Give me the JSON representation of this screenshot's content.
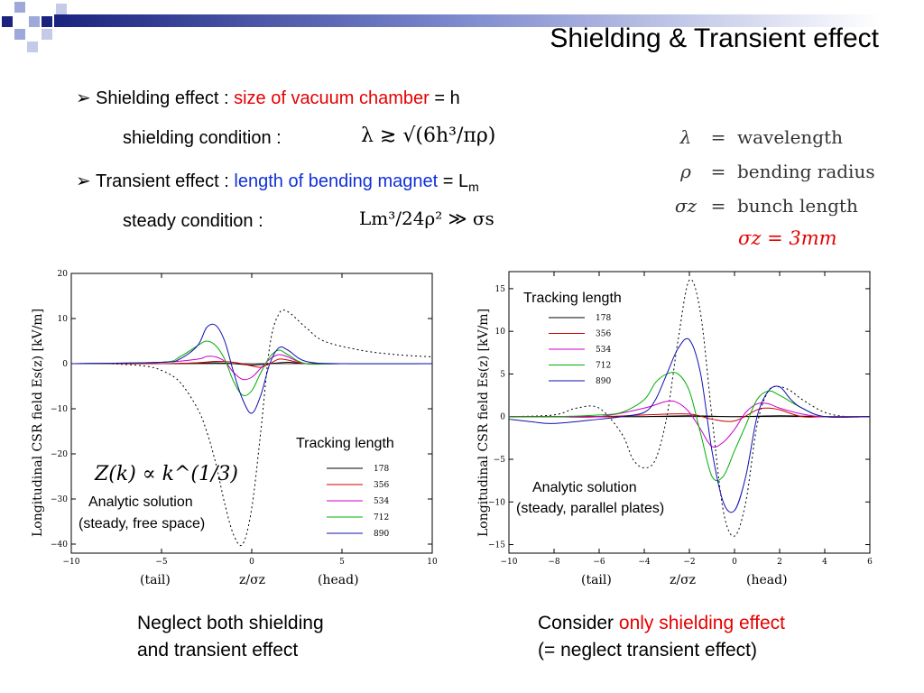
{
  "slide": {
    "title": "Shielding & Transient effect"
  },
  "bullets": {
    "b1": {
      "prefix": "Shielding effect : ",
      "highlight": "size of vacuum chamber",
      "suffix": " = h"
    },
    "b1_sub": {
      "label": "shielding condition :",
      "formula": "λ ≳ √(6h³/πρ)"
    },
    "b2": {
      "prefix": "Transient effect : ",
      "highlight": "length of bending magnet",
      "suffix": " = L",
      "subscript": "m"
    },
    "b2_sub": {
      "label": "steady condition :",
      "formula": "Lm³/24ρ² ≫ σs"
    }
  },
  "definitions": [
    {
      "symbol": "λ",
      "eq": "=",
      "text": "wavelength"
    },
    {
      "symbol": "ρ",
      "eq": "=",
      "text": "bending radius"
    },
    {
      "symbol": "σz",
      "eq": "=",
      "text": "bunch length"
    }
  ],
  "sigma_value": "σz = 3mm",
  "colors": {
    "red": "#e60000",
    "blue": "#1030d8",
    "corner_navy": "#1a237e",
    "corner_blue": "#5c6bc0"
  },
  "chart_data": [
    {
      "type": "line",
      "ylabel": "Longitudinal CSR field Es(z) [kV/m]",
      "xlabel": "z/σz",
      "xlabel_left": "(tail)",
      "xlabel_right": "(head)",
      "xlim": [
        -10,
        10
      ],
      "ylim": [
        -42,
        20
      ],
      "xticks": [
        -10,
        -5,
        0,
        5,
        10
      ],
      "yticks": [
        20,
        10,
        0,
        -10,
        -20,
        -30,
        -40
      ],
      "legend_title": "Tracking length",
      "legend": [
        "178",
        "356",
        "534",
        "712",
        "890"
      ],
      "annotation_formula": "Z(k) ∝ k^(1/3)",
      "annotation_text": [
        "Analytic solution",
        "(steady, free space)"
      ],
      "series": [
        {
          "name": "analytic",
          "style": "dotted",
          "color": "#000000",
          "x": [
            -10,
            -8,
            -6,
            -5,
            -4,
            -3,
            -2.5,
            -2,
            -1.5,
            -1,
            -0.5,
            0,
            0.5,
            1,
            1.5,
            2,
            3,
            4,
            6,
            8,
            10
          ],
          "y": [
            0,
            0,
            -0.5,
            -1.5,
            -4,
            -10,
            -15,
            -22,
            -31,
            -38,
            -40,
            -32,
            -15,
            4,
            11,
            11.5,
            8,
            5,
            3,
            2,
            1.5
          ]
        },
        {
          "name": "178",
          "color": "#000000",
          "x": [
            -10,
            -5,
            -3,
            -2,
            -1,
            0,
            1,
            2,
            3,
            5,
            10
          ],
          "y": [
            0,
            0,
            0.1,
            0.2,
            0,
            -0.3,
            0,
            0.3,
            0,
            0,
            0
          ]
        },
        {
          "name": "356",
          "color": "#cc0000",
          "x": [
            -10,
            -5,
            -3,
            -2,
            -1,
            0,
            0.5,
            1,
            1.5,
            2,
            3,
            5,
            10
          ],
          "y": [
            0,
            0,
            0.2,
            0.5,
            0.3,
            -0.5,
            -0.8,
            0,
            1,
            0.8,
            0,
            0,
            0
          ]
        },
        {
          "name": "534",
          "color": "#cc00cc",
          "x": [
            -10,
            -5,
            -3,
            -2.5,
            -2,
            -1.5,
            -1,
            -0.5,
            0,
            0.5,
            1,
            1.5,
            2,
            3,
            5,
            10
          ],
          "y": [
            0,
            0.3,
            1,
            1.6,
            1.5,
            0.5,
            -2,
            -3.5,
            -3,
            -1,
            1,
            2,
            1.5,
            0,
            0,
            0
          ]
        },
        {
          "name": "712",
          "color": "#00b000",
          "x": [
            -10,
            -5,
            -4,
            -3,
            -2.5,
            -2,
            -1.5,
            -1,
            -0.5,
            0,
            0.5,
            1,
            1.5,
            2,
            3,
            5,
            10
          ],
          "y": [
            0,
            0.3,
            1.5,
            4,
            5,
            4,
            1,
            -4,
            -7,
            -6,
            -2,
            1.5,
            3,
            2,
            0,
            0,
            0
          ]
        },
        {
          "name": "890",
          "color": "#1010b0",
          "x": [
            -10,
            -5,
            -4,
            -3,
            -2.5,
            -2,
            -1.5,
            -1,
            -0.5,
            0,
            0.5,
            1,
            1.5,
            2,
            3,
            5,
            10
          ],
          "y": [
            0,
            0.3,
            1,
            4,
            8,
            8.5,
            5,
            -2,
            -8,
            -11,
            -7,
            0,
            3.5,
            3,
            0.5,
            0,
            0
          ]
        }
      ]
    },
    {
      "type": "line",
      "ylabel": "Longitudinal CSR field Es(z) [kV/m]",
      "xlabel": "z/σz",
      "xlabel_left": "(tail)",
      "xlabel_right": "(head)",
      "xlim": [
        -10,
        6
      ],
      "ylim": [
        -16,
        17
      ],
      "xticks": [
        -10,
        -8,
        -6,
        -4,
        -2,
        0,
        2,
        4,
        6
      ],
      "yticks": [
        15,
        10,
        5,
        0,
        -5,
        -10,
        -15
      ],
      "legend_title": "Tracking length",
      "legend": [
        "178",
        "356",
        "534",
        "712",
        "890"
      ],
      "annotation_text": [
        "Analytic solution",
        "(steady, parallel plates)"
      ],
      "series": [
        {
          "name": "analytic",
          "style": "dotted",
          "color": "#000000",
          "x": [
            -10,
            -8,
            -7,
            -6,
            -5,
            -4.5,
            -4,
            -3.5,
            -3,
            -2.5,
            -2,
            -1.5,
            -1,
            -0.5,
            0,
            0.5,
            1,
            1.5,
            2,
            2.5,
            3,
            4,
            5,
            6
          ],
          "y": [
            0,
            0.2,
            1,
            1,
            -2,
            -5,
            -6,
            -5,
            0,
            9,
            16,
            12,
            0,
            -11,
            -14,
            -10,
            -1,
            3,
            3.5,
            3,
            2,
            0.5,
            0,
            0
          ]
        },
        {
          "name": "178",
          "color": "#000000",
          "x": [
            -10,
            -6,
            -4,
            -2,
            0,
            2,
            4,
            6
          ],
          "y": [
            0,
            0,
            0,
            0.1,
            0,
            0.1,
            0,
            0
          ]
        },
        {
          "name": "356",
          "color": "#cc0000",
          "x": [
            -10,
            -6,
            -4,
            -2,
            -1,
            0,
            1,
            1.5,
            2,
            3,
            4,
            6
          ],
          "y": [
            0,
            0,
            0.2,
            0.3,
            -0.3,
            -0.5,
            0.8,
            1,
            0.8,
            0,
            0,
            0
          ]
        },
        {
          "name": "534",
          "color": "#cc00cc",
          "x": [
            -10,
            -8,
            -6,
            -4,
            -3,
            -2.5,
            -2,
            -1.5,
            -1,
            -0.5,
            0,
            0.5,
            1,
            1.5,
            2,
            3,
            4,
            6
          ],
          "y": [
            0,
            0,
            0,
            1,
            1.8,
            1.6,
            0.5,
            -1.5,
            -3.5,
            -3,
            -1.5,
            0.5,
            1.5,
            1.5,
            1,
            0.3,
            0,
            0
          ]
        },
        {
          "name": "712",
          "color": "#00b000",
          "x": [
            -10,
            -8,
            -6,
            -5,
            -4,
            -3.5,
            -3,
            -2.5,
            -2,
            -1.5,
            -1,
            -0.5,
            0,
            0.5,
            1,
            1.5,
            2,
            3,
            4,
            6
          ],
          "y": [
            0,
            0,
            0.2,
            0.5,
            2,
            4,
            5,
            5,
            3,
            -2,
            -7,
            -7,
            -4,
            -1,
            2,
            3,
            2.5,
            1,
            0,
            0
          ]
        },
        {
          "name": "890",
          "color": "#1010b0",
          "x": [
            -10,
            -9,
            -8,
            -6,
            -5,
            -4,
            -3.5,
            -3,
            -2.5,
            -2,
            -1.5,
            -1,
            -0.5,
            0,
            0.5,
            1,
            1.5,
            2,
            2.5,
            3,
            4,
            6
          ],
          "y": [
            -0.3,
            -0.6,
            -0.8,
            -0.3,
            0,
            0.5,
            2,
            5,
            8,
            9,
            5,
            -4,
            -10,
            -11,
            -7,
            0,
            3,
            3.5,
            2,
            1,
            0,
            0
          ]
        }
      ]
    }
  ],
  "captions": {
    "left": [
      "Neglect both shielding",
      "and transient effect"
    ],
    "right_prefix": "Consider ",
    "right_highlight": "only shielding effect",
    "right_line2": "(= neglect transient effect)"
  }
}
